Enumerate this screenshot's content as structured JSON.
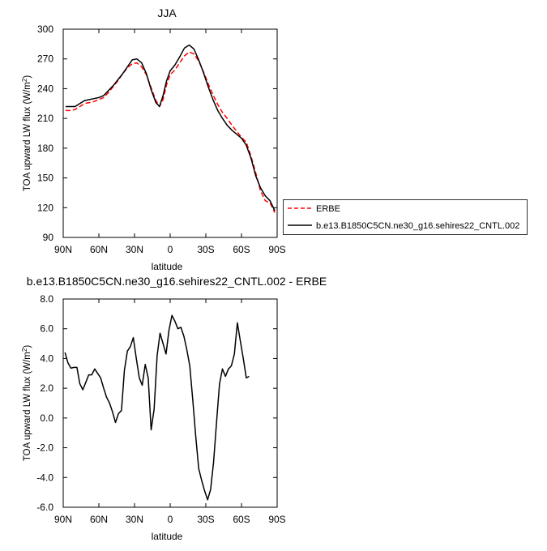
{
  "chart_data": [
    {
      "type": "line",
      "title": "JJA",
      "xlabel": "latitude",
      "ylabel": "TOA upward LW flux (W/m",
      "ylabel_sup": "2",
      "ylabel_close": ")",
      "xlim": [
        90,
        -90
      ],
      "ylim": [
        90,
        300
      ],
      "xticks": [
        {
          "v": 90,
          "label": "90N"
        },
        {
          "v": 60,
          "label": "60N"
        },
        {
          "v": 30,
          "label": "30N"
        },
        {
          "v": 0,
          "label": "0"
        },
        {
          "v": -30,
          "label": "30S"
        },
        {
          "v": -60,
          "label": "60S"
        },
        {
          "v": -90,
          "label": "90S"
        }
      ],
      "yticks": [
        {
          "v": 90,
          "label": "90"
        },
        {
          "v": 120,
          "label": "120"
        },
        {
          "v": 150,
          "label": "150"
        },
        {
          "v": 180,
          "label": "180"
        },
        {
          "v": 210,
          "label": "210"
        },
        {
          "v": 240,
          "label": "240"
        },
        {
          "v": 270,
          "label": "270"
        },
        {
          "v": 300,
          "label": "300"
        }
      ],
      "grid": false,
      "legend_position": "right",
      "series": [
        {
          "name": "ERBE",
          "color": "#ff0000",
          "dash": "dashed",
          "points": [
            [
              88,
              218
            ],
            [
              84,
              218
            ],
            [
              80,
              219
            ],
            [
              76,
              222
            ],
            [
              72,
              225
            ],
            [
              68,
              226
            ],
            [
              64,
              227
            ],
            [
              60,
              229
            ],
            [
              56,
              231
            ],
            [
              52,
              236
            ],
            [
              48,
              242
            ],
            [
              44,
              248
            ],
            [
              40,
              255
            ],
            [
              36,
              261
            ],
            [
              32,
              265
            ],
            [
              28,
              266
            ],
            [
              24,
              262
            ],
            [
              20,
              254
            ],
            [
              16,
              241
            ],
            [
              12,
              228
            ],
            [
              9,
              222
            ],
            [
              6,
              229
            ],
            [
              3,
              244
            ],
            [
              0,
              254
            ],
            [
              -4,
              259
            ],
            [
              -8,
              266
            ],
            [
              -12,
              273
            ],
            [
              -16,
              277
            ],
            [
              -20,
              275
            ],
            [
              -24,
              268
            ],
            [
              -28,
              257
            ],
            [
              -32,
              245
            ],
            [
              -36,
              234
            ],
            [
              -40,
              224
            ],
            [
              -44,
              216
            ],
            [
              -48,
              210
            ],
            [
              -52,
              203
            ],
            [
              -56,
              197
            ],
            [
              -60,
              191
            ],
            [
              -64,
              186
            ],
            [
              -68,
              172
            ],
            [
              -72,
              155
            ],
            [
              -76,
              137
            ],
            [
              -80,
              127
            ],
            [
              -84,
              125
            ],
            [
              -88,
              115
            ]
          ]
        },
        {
          "name": "b.e13.B1850C5CN.ne30_g16.sehires22_CNTL.002",
          "color": "#000000",
          "dash": "solid",
          "points": [
            [
              88,
              222
            ],
            [
              84,
              222
            ],
            [
              80,
              222
            ],
            [
              76,
              225
            ],
            [
              72,
              228
            ],
            [
              68,
              229
            ],
            [
              64,
              230
            ],
            [
              60,
              231
            ],
            [
              56,
              233
            ],
            [
              52,
              238
            ],
            [
              48,
              243
            ],
            [
              44,
              249
            ],
            [
              40,
              255
            ],
            [
              36,
              262
            ],
            [
              32,
              269
            ],
            [
              28,
              270
            ],
            [
              24,
              266
            ],
            [
              20,
              255
            ],
            [
              16,
              239
            ],
            [
              12,
              226
            ],
            [
              9,
              222
            ],
            [
              6,
              233
            ],
            [
              3,
              248
            ],
            [
              0,
              258
            ],
            [
              -4,
              264
            ],
            [
              -8,
              272
            ],
            [
              -12,
              281
            ],
            [
              -16,
              284
            ],
            [
              -20,
              280
            ],
            [
              -24,
              269
            ],
            [
              -28,
              256
            ],
            [
              -32,
              242
            ],
            [
              -36,
              229
            ],
            [
              -40,
              218
            ],
            [
              -44,
              210
            ],
            [
              -48,
              203
            ],
            [
              -52,
              198
            ],
            [
              -56,
              194
            ],
            [
              -60,
              190
            ],
            [
              -64,
              183
            ],
            [
              -68,
              170
            ],
            [
              -72,
              152
            ],
            [
              -76,
              140
            ],
            [
              -80,
              132
            ],
            [
              -84,
              127
            ],
            [
              -88,
              117
            ]
          ]
        }
      ]
    },
    {
      "type": "line",
      "title": "b.e13.B1850C5CN.ne30_g16.sehires22_CNTL.002 - ERBE",
      "xlabel": "latitude",
      "ylabel": "TOA upward LW flux (W/m",
      "ylabel_sup": "2",
      "ylabel_close": ")",
      "xlim": [
        90,
        -90
      ],
      "ylim": [
        -6,
        8
      ],
      "xticks": [
        {
          "v": 90,
          "label": "90N"
        },
        {
          "v": 60,
          "label": "60N"
        },
        {
          "v": 30,
          "label": "30N"
        },
        {
          "v": 0,
          "label": "0"
        },
        {
          "v": -30,
          "label": "30S"
        },
        {
          "v": -60,
          "label": "60S"
        },
        {
          "v": -90,
          "label": "90S"
        }
      ],
      "yticks": [
        {
          "v": 8,
          "label": "8.0"
        },
        {
          "v": 6,
          "label": "6.0"
        },
        {
          "v": 4,
          "label": "4.0"
        },
        {
          "v": 2,
          "label": "2.0"
        },
        {
          "v": 0,
          "label": "0.0"
        },
        {
          "v": -2,
          "label": "-2.0"
        },
        {
          "v": -4,
          "label": "-4.0"
        },
        {
          "v": -6,
          "label": "-6.0"
        }
      ],
      "grid": false,
      "series": [
        {
          "color": "#000000",
          "dash": "solid",
          "points": [
            [
              88.5,
              4.4
            ],
            [
              86,
              3.7
            ],
            [
              83.5,
              3.35
            ],
            [
              81,
              3.4
            ],
            [
              78.5,
              3.4
            ],
            [
              76,
              2.3
            ],
            [
              73.5,
              1.9
            ],
            [
              71,
              2.4
            ],
            [
              68.5,
              2.9
            ],
            [
              66,
              2.9
            ],
            [
              63.5,
              3.3
            ],
            [
              61,
              3.0
            ],
            [
              58.5,
              2.7
            ],
            [
              56,
              2.0
            ],
            [
              53.5,
              1.4
            ],
            [
              51,
              1.0
            ],
            [
              48.5,
              0.4
            ],
            [
              46,
              -0.3
            ],
            [
              43.5,
              0.3
            ],
            [
              41,
              0.5
            ],
            [
              38.5,
              3.2
            ],
            [
              36,
              4.5
            ],
            [
              33.5,
              4.8
            ],
            [
              31,
              5.4
            ],
            [
              28.5,
              4.0
            ],
            [
              26,
              2.7
            ],
            [
              23.5,
              2.2
            ],
            [
              21,
              3.6
            ],
            [
              18.5,
              2.7
            ],
            [
              16,
              -0.8
            ],
            [
              13.5,
              0.6
            ],
            [
              11,
              4.2
            ],
            [
              8.5,
              5.7
            ],
            [
              6,
              5.0
            ],
            [
              3.5,
              4.3
            ],
            [
              1,
              5.9
            ],
            [
              -1.5,
              6.9
            ],
            [
              -4,
              6.5
            ],
            [
              -6.5,
              6.0
            ],
            [
              -9,
              6.1
            ],
            [
              -11.5,
              5.5
            ],
            [
              -14,
              4.6
            ],
            [
              -16.5,
              3.5
            ],
            [
              -19,
              1.2
            ],
            [
              -21.5,
              -1.2
            ],
            [
              -24,
              -3.4
            ],
            [
              -26.5,
              -4.2
            ],
            [
              -29,
              -4.9
            ],
            [
              -31.5,
              -5.5
            ],
            [
              -34,
              -4.8
            ],
            [
              -36.5,
              -3.0
            ],
            [
              -39,
              -0.3
            ],
            [
              -41.5,
              2.3
            ],
            [
              -44,
              3.3
            ],
            [
              -46.5,
              2.8
            ],
            [
              -49,
              3.3
            ],
            [
              -51.5,
              3.5
            ],
            [
              -54,
              4.3
            ],
            [
              -56.5,
              6.4
            ],
            [
              -59,
              5.2
            ],
            [
              -61.5,
              4.0
            ],
            [
              -64,
              2.7
            ],
            [
              -66.5,
              2.8
            ]
          ]
        }
      ]
    }
  ]
}
